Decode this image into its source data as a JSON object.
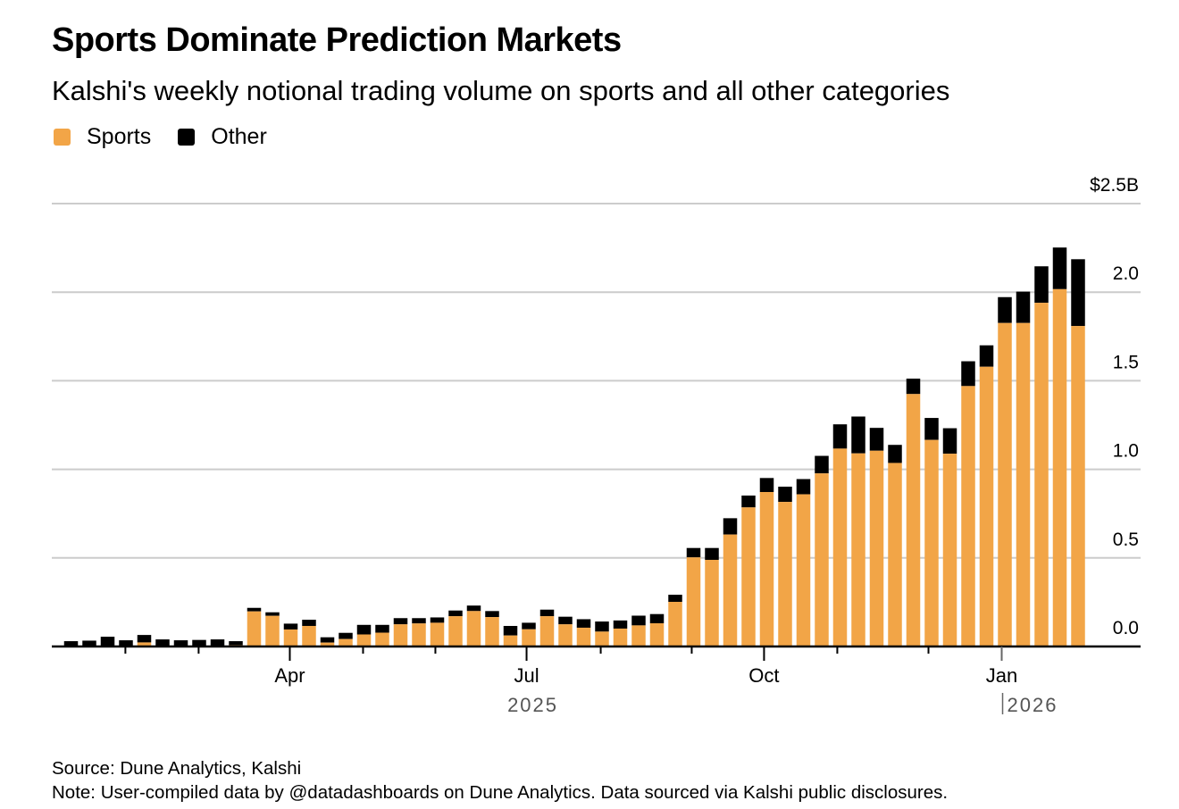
{
  "header": {
    "title": "Sports Dominate Prediction Markets",
    "subtitle": "Kalshi's weekly notional trading volume on sports and all other categories"
  },
  "footer": {
    "source": "Source: Dune Analytics, Kalshi",
    "note": "Note: User-compiled data by @datadashboards on Dune Analytics. Data sourced via Kalshi public disclosures."
  },
  "colors": {
    "sports": "#F2A547",
    "other": "#000000",
    "grid": "#cccccc",
    "axis": "#000000",
    "year_label": "#555555"
  },
  "chart_data": {
    "type": "bar",
    "stacked": true,
    "title": "Sports Dominate Prediction Markets",
    "subtitle": "Kalshi's weekly notional trading volume on sports and all other categories",
    "xlabel": "",
    "ylabel": "",
    "y_unit_label": "$2.5B",
    "ylim": [
      0,
      2.5
    ],
    "yticks": [
      0.0,
      0.5,
      1.0,
      1.5,
      2.0,
      2.5
    ],
    "ytick_labels": [
      "0.0",
      "0.5",
      "1.0",
      "1.5",
      "2.0",
      "$2.5B"
    ],
    "grid": true,
    "legend_position": "top-left",
    "legend": [
      {
        "name": "Sports",
        "color": "#F2A547"
      },
      {
        "name": "Other",
        "color": "#000000"
      }
    ],
    "x_period": "weekly",
    "n_weeks": 56,
    "month_ticks": [
      {
        "week_pos": 2.97,
        "label": "",
        "major": false
      },
      {
        "week_pos": 6.97,
        "label": "",
        "major": false
      },
      {
        "week_pos": 11.95,
        "label": "Apr",
        "major": true
      },
      {
        "week_pos": 15.95,
        "label": "",
        "major": false
      },
      {
        "week_pos": 19.9,
        "label": "",
        "major": false
      },
      {
        "week_pos": 24.88,
        "label": "Jul",
        "major": true
      },
      {
        "week_pos": 28.93,
        "label": "",
        "major": false
      },
      {
        "week_pos": 33.9,
        "label": "",
        "major": false
      },
      {
        "week_pos": 37.85,
        "label": "Oct",
        "major": true
      },
      {
        "week_pos": 41.85,
        "label": "",
        "major": false
      },
      {
        "week_pos": 46.83,
        "label": "",
        "major": false
      },
      {
        "week_pos": 50.83,
        "label": "Jan",
        "major": true
      }
    ],
    "year_labels": [
      {
        "week_pos": 24.88,
        "label": "2025",
        "divider": false
      },
      {
        "week_pos": 52.3,
        "label": "2026",
        "divider": true
      }
    ],
    "series": [
      {
        "name": "Sports",
        "values": [
          0.0,
          0.0,
          0.005,
          0.001,
          0.023,
          0.003,
          0.002,
          0.002,
          0.003,
          0.007,
          0.198,
          0.173,
          0.096,
          0.116,
          0.022,
          0.042,
          0.068,
          0.078,
          0.125,
          0.13,
          0.134,
          0.171,
          0.2,
          0.166,
          0.062,
          0.097,
          0.171,
          0.125,
          0.106,
          0.084,
          0.101,
          0.119,
          0.131,
          0.252,
          0.503,
          0.489,
          0.632,
          0.785,
          0.872,
          0.816,
          0.859,
          0.977,
          1.117,
          1.09,
          1.105,
          1.036,
          1.425,
          1.166,
          1.088,
          1.47,
          1.579,
          1.826,
          1.826,
          1.94,
          2.017,
          1.809
        ]
      },
      {
        "name": "Other",
        "values": [
          0.03,
          0.033,
          0.05,
          0.034,
          0.042,
          0.037,
          0.033,
          0.035,
          0.037,
          0.023,
          0.02,
          0.02,
          0.033,
          0.035,
          0.03,
          0.035,
          0.054,
          0.044,
          0.035,
          0.03,
          0.03,
          0.032,
          0.031,
          0.034,
          0.054,
          0.037,
          0.037,
          0.043,
          0.048,
          0.057,
          0.046,
          0.055,
          0.052,
          0.04,
          0.053,
          0.067,
          0.092,
          0.067,
          0.079,
          0.086,
          0.086,
          0.099,
          0.137,
          0.208,
          0.129,
          0.102,
          0.087,
          0.124,
          0.144,
          0.14,
          0.121,
          0.146,
          0.177,
          0.206,
          0.235,
          0.377
        ]
      }
    ]
  }
}
